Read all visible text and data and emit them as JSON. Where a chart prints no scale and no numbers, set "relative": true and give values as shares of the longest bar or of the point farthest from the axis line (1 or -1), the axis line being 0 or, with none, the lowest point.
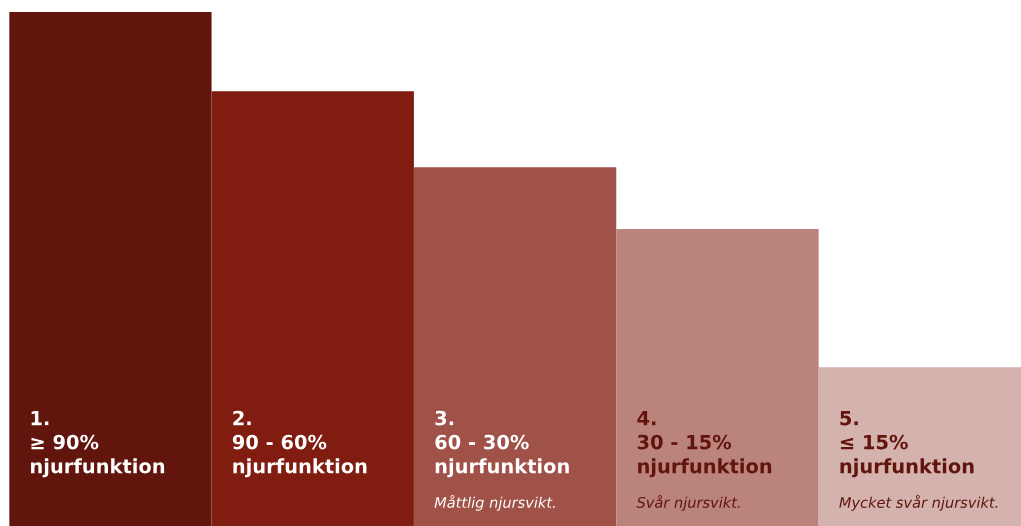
{
  "chart_data": {
    "type": "bar",
    "relative": true,
    "categories": [
      "1.\n≥ 90%\nnjurfunktion",
      "2.\n90 - 60%\nnjurfunktion",
      "3.\n60 - 30%\nnjurfunktion",
      "4.\n30 - 15%\nnjurfunktion",
      "5.\n≤ 15%\nnjurfunktion"
    ],
    "values": [
      1,
      0.846,
      0.698,
      0.578,
      0.309
    ],
    "colors": [
      "#62150d",
      "#801c10",
      "#a05248",
      "#ba837b",
      "#d4b2ad"
    ],
    "annotations": [
      "Måttlig njursvikt.",
      "Svår njursvikt.",
      "Mycket svår njursvikt."
    ]
  }
}
